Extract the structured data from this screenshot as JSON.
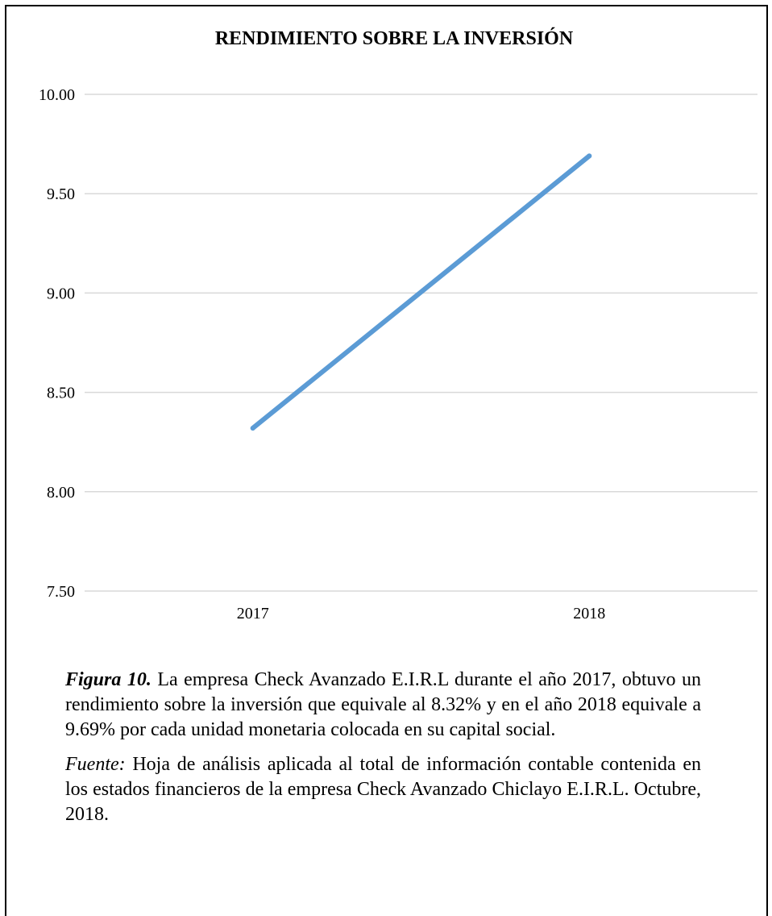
{
  "chart_data": {
    "type": "line",
    "title": "RENDIMIENTO SOBRE LA INVERSIÓN",
    "categories": [
      "2017",
      "2018"
    ],
    "series": [
      {
        "values": [
          8.32,
          9.69
        ],
        "color": "#5b9bd5"
      }
    ],
    "ylim": [
      7.5,
      10.0
    ],
    "yticks": [
      "10.00",
      "9.50",
      "9.00",
      "8.50",
      "8.00",
      "7.50"
    ],
    "grid": true,
    "xlabel": "",
    "ylabel": ""
  },
  "caption": {
    "figure_label": "Figura 10.",
    "text": " La empresa Check Avanzado E.I.R.L durante el año 2017, obtuvo un rendimiento sobre la inversión que equivale al 8.32% y en el año 2018 equivale a 9.69% por cada unidad monetaria colocada en su capital social."
  },
  "source": {
    "label": "Fuente:",
    "text": " Hoja de análisis aplicada al total de información contable contenida en los estados financieros de la empresa Check Avanzado Chiclayo E.I.R.L. Octubre, 2018."
  }
}
